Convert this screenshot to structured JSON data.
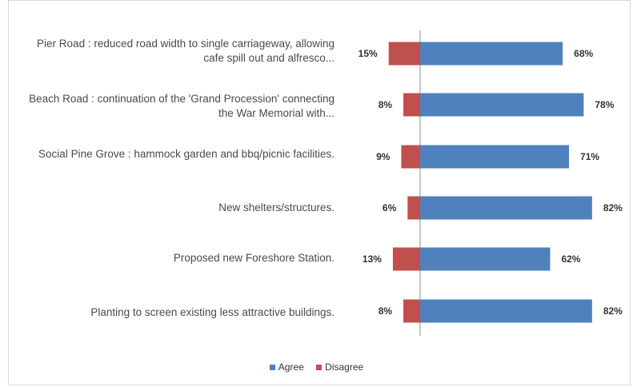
{
  "chart_data": {
    "type": "bar",
    "orientation": "horizontal-diverging",
    "categories": [
      "Pier Road : reduced road width to single carriageway, allowing cafe spill out and alfresco...",
      "Beach Road : continuation of the 'Grand Procession' connecting the War Memorial with...",
      "Social Pine Grove : hammock garden and bbq/picnic facilities.",
      "New shelters/structures.",
      "Proposed new Foreshore Station.",
      "Planting to screen existing less attractive buildings."
    ],
    "series": [
      {
        "name": "Agree",
        "color": "#4f81bd",
        "values": [
          68,
          78,
          71,
          82,
          62,
          82
        ],
        "labels": [
          "68%",
          "78%",
          "71%",
          "82%",
          "62%",
          "82%"
        ]
      },
      {
        "name": "Disagree",
        "color": "#c0504d",
        "values": [
          15,
          8,
          9,
          6,
          13,
          8
        ],
        "labels": [
          "15%",
          "8%",
          "9%",
          "6%",
          "13%",
          "8%"
        ]
      }
    ],
    "unit": "%",
    "legend_position": "bottom",
    "grid": false
  }
}
